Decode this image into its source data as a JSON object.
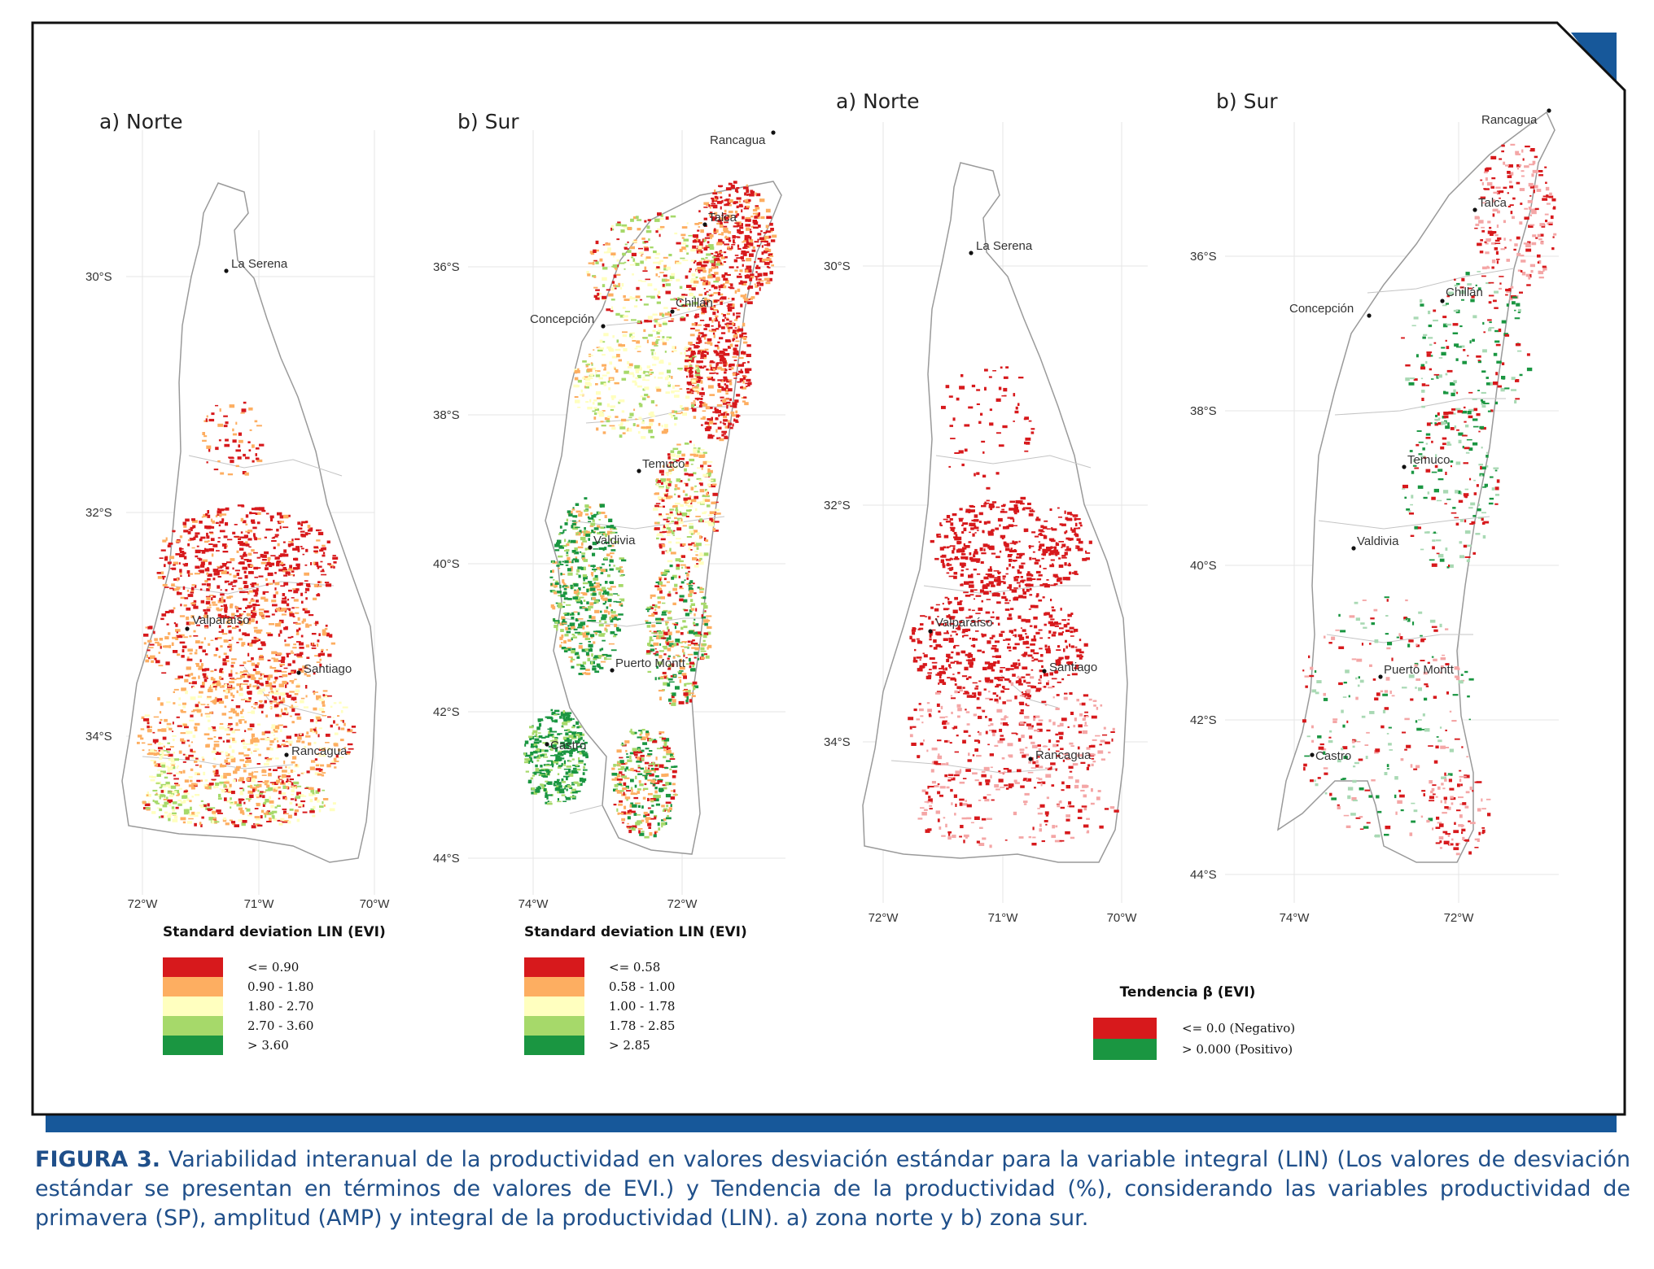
{
  "panels": [
    {
      "id": "p1",
      "title": "a) Norte",
      "lat_ticks": [
        "30°S",
        "32°S",
        "34°S"
      ],
      "lon_ticks": [
        "72°W",
        "71°W",
        "70°W"
      ],
      "cities": [
        "La Serena",
        "Valparaíso",
        "Santiago",
        "Rancagua"
      ]
    },
    {
      "id": "p2",
      "title": "b) Sur",
      "lat_ticks": [
        "36°S",
        "38°S",
        "40°S",
        "42°S",
        "44°S"
      ],
      "lon_ticks": [
        "74°W",
        "72°W"
      ],
      "cities": [
        "Rancagua",
        "Talca",
        "Chillán",
        "Concepción",
        "Temuco",
        "Valdivia",
        "Puerto Montt",
        "Castro"
      ]
    },
    {
      "id": "p3",
      "title": "a) Norte",
      "lat_ticks": [
        "30°S",
        "32°S",
        "34°S"
      ],
      "lon_ticks": [
        "72°W",
        "71°W",
        "70°W"
      ],
      "cities": [
        "La Serena",
        "Valparaíso",
        "Santiago",
        "Rancagua"
      ]
    },
    {
      "id": "p4",
      "title": "b) Sur",
      "lat_ticks": [
        "36°S",
        "38°S",
        "40°S",
        "42°S",
        "44°S"
      ],
      "lon_ticks": [
        "74°W",
        "72°W"
      ],
      "cities": [
        "Rancagua",
        "Talca",
        "Chillán",
        "Concepción",
        "Temuco",
        "Valdivia",
        "Puerto Montt",
        "Castro"
      ]
    }
  ],
  "legends": [
    {
      "title": "Standard deviation LIN (EVI)",
      "entries": [
        {
          "label": "<= 0.90",
          "color": "#d7191c"
        },
        {
          "label": "0.90 - 1.80",
          "color": "#fdae61"
        },
        {
          "label": "1.80 - 2.70",
          "color": "#ffffbf"
        },
        {
          "label": "2.70 - 3.60",
          "color": "#a6d96a"
        },
        {
          "label": "> 3.60",
          "color": "#1a9641"
        }
      ]
    },
    {
      "title": "Standard deviation LIN (EVI)",
      "entries": [
        {
          "label": "<= 0.58",
          "color": "#d7191c"
        },
        {
          "label": "0.58 - 1.00",
          "color": "#fdae61"
        },
        {
          "label": "1.00 - 1.78",
          "color": "#ffffbf"
        },
        {
          "label": "1.78 - 2.85",
          "color": "#a6d96a"
        },
        {
          "label": "> 2.85",
          "color": "#1a9641"
        }
      ]
    },
    {
      "title": "Tendencia β (EVI)",
      "entries": [
        {
          "label": "<= 0.0 (Negativo)",
          "color": "#d7191c"
        },
        {
          "label": "> 0.000 (Positivo)",
          "color": "#1a9641"
        }
      ]
    }
  ],
  "caption": {
    "label": "FIGURA 3.",
    "text": " Variabilidad interanual de la productividad en valores desviación estándar para la variable integral (LIN) (Los valores de desviación estándar se presentan en términos de valores de EVI.) y Tendencia de la productividad (%), considerando las variables productividad de primavera (SP), amplitud (AMP) y integral de la productividad (LIN). a) zona norte y b) zona sur."
  },
  "colors": {
    "frame_accent": "#17589a",
    "caption_text": "#1f4f8a",
    "boundary": "#9a9a9a",
    "grid": "#e6e6e6"
  }
}
